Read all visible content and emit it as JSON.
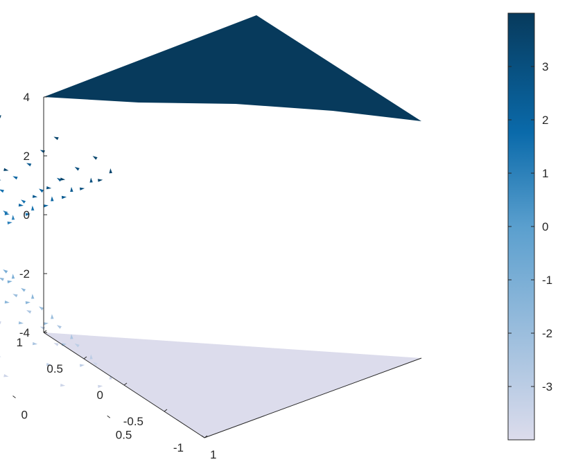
{
  "chart_data": {
    "type": "quiver3d",
    "title": "",
    "xlabel": "",
    "ylabel": "",
    "zlabel": "",
    "xlim": [
      -1,
      1
    ],
    "ylim": [
      -1,
      1
    ],
    "zlim": [
      -4,
      4
    ],
    "grid": false,
    "colormap": "blue",
    "colormap_colors": [
      "#dcdcec",
      "#5a9fce",
      "#0a6aaa",
      "#073a5c"
    ],
    "colorbar": {
      "limits": [
        -4,
        4
      ],
      "ticks": [
        -3,
        -2,
        -1,
        0,
        1,
        2,
        3
      ],
      "tick_labels": [
        "-3",
        "-2",
        "-1",
        "0",
        "1",
        "2",
        "3"
      ],
      "location": "right"
    },
    "z_ticks": [
      -4,
      -2,
      0,
      2,
      4
    ],
    "z_tick_labels": [
      "-4",
      "-2",
      "0",
      "2",
      "4"
    ],
    "y_ticks": [
      -1,
      -0.5,
      0,
      0.5,
      1
    ],
    "y_tick_labels": [
      "-1",
      "-0.5",
      "0",
      "0.5",
      "1"
    ],
    "x_ticks": [
      -1,
      -0.5,
      0,
      0.5,
      1
    ],
    "x_tick_labels": [
      "-1",
      "-0.5",
      "0",
      "0.5",
      "1"
    ],
    "surfaces": [
      {
        "name": "top-plane",
        "z": 4,
        "color_value": 4
      },
      {
        "name": "bottom-plane",
        "z": -4,
        "color_value": -4
      }
    ],
    "vector_field": {
      "description_shape": "double cone",
      "z_levels": [
        -3.5,
        -3,
        -2.5,
        -2,
        -1.5,
        -1,
        -0.5,
        0,
        0.5,
        1,
        1.5,
        2,
        2.5,
        3,
        3.5
      ],
      "radius_at_z": "0.2 + 0.2 * |z|"
    }
  }
}
